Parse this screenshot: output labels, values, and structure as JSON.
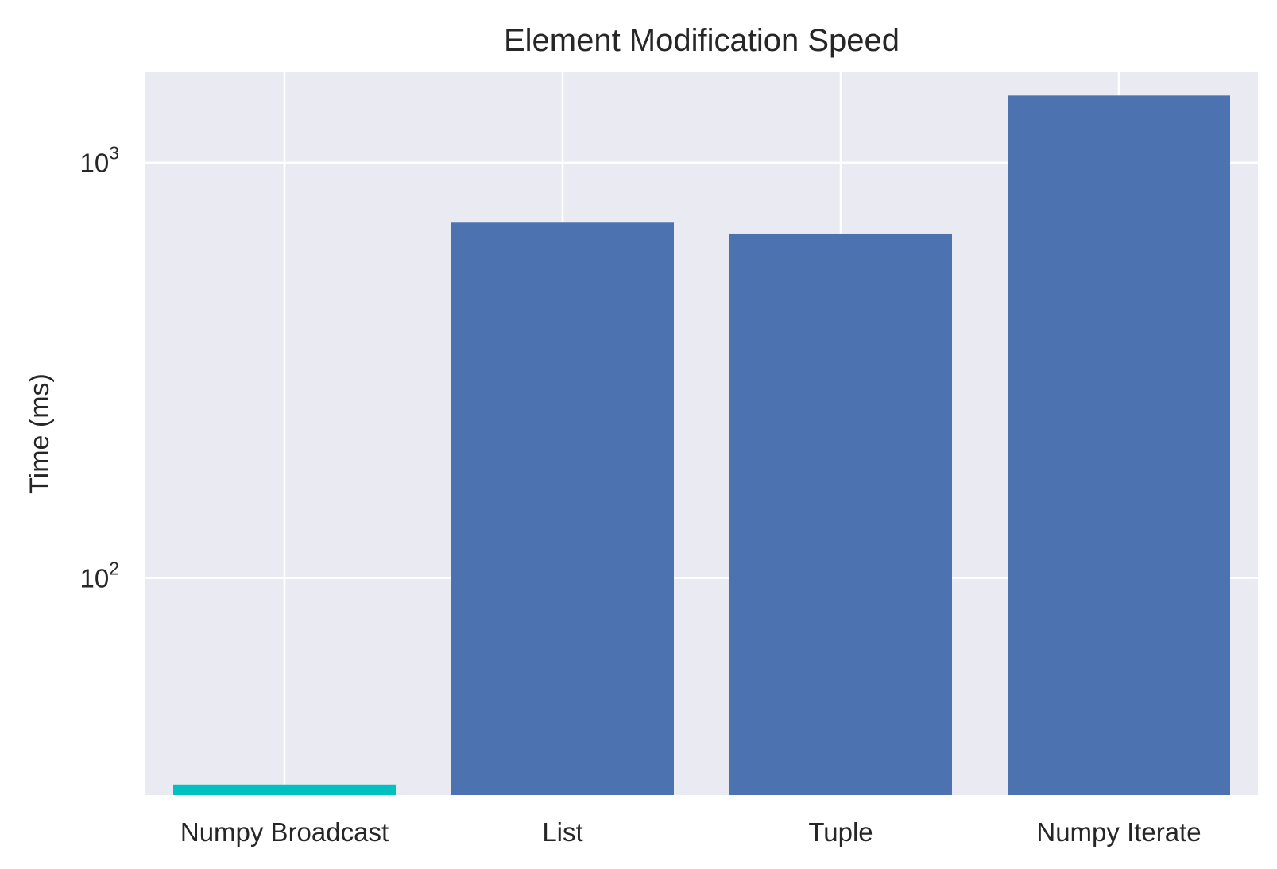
{
  "chart_data": {
    "type": "bar",
    "title": "Element Modification Speed",
    "xlabel": "",
    "ylabel": "Time (ms)",
    "yscale": "log",
    "ylim": [
      30,
      1650
    ],
    "yticks": [
      {
        "value": 100,
        "base": "10",
        "exp": "2"
      },
      {
        "value": 1000,
        "base": "10",
        "exp": "3"
      }
    ],
    "grid": true,
    "categories": [
      "Numpy Broadcast",
      "List",
      "Tuple",
      "Numpy Iterate"
    ],
    "values": [
      31.8,
      717,
      675,
      1450
    ],
    "colors": [
      "#00c0c0",
      "#4c72b0",
      "#4c72b0",
      "#4c72b0"
    ],
    "background_color": "#eaeaf2",
    "grid_color": "#ffffff"
  }
}
